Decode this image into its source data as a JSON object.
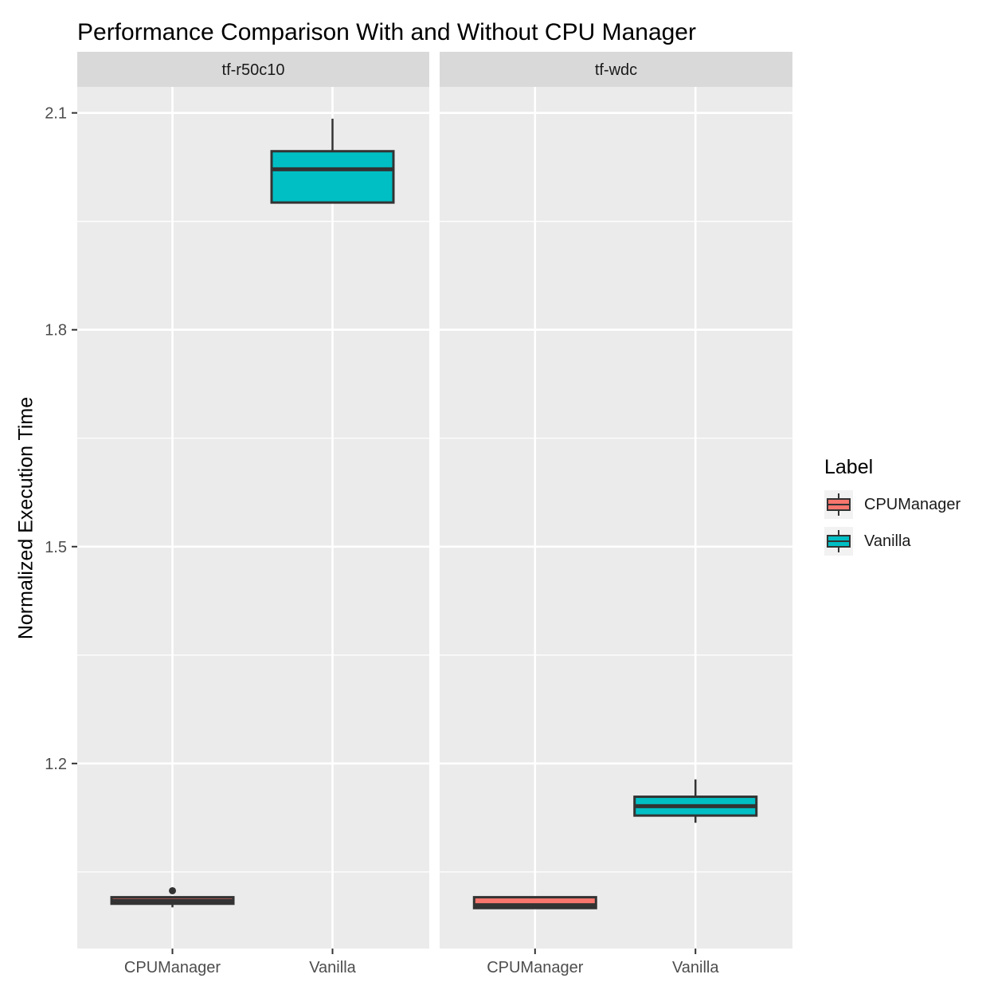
{
  "chart_data": {
    "type": "boxplot",
    "title": "Performance Comparison With and Without CPU Manager",
    "ylabel": "Normalized Execution Time",
    "xlabel": "",
    "ylim": [
      0.944,
      2.136
    ],
    "y_ticks": [
      2.1,
      1.8,
      1.5,
      1.2
    ],
    "y_minor_ticks": [
      1.95,
      1.65,
      1.35,
      1.05
    ],
    "grid": true,
    "legend": {
      "title": "Label",
      "position": "right",
      "entries": [
        {
          "label": "CPUManager",
          "color": "#F8766D"
        },
        {
          "label": "Vanilla",
          "color": "#00BFC4"
        }
      ]
    },
    "facets": [
      {
        "label": "tf-r50c10",
        "categories": [
          "CPUManager",
          "Vanilla"
        ],
        "boxes": [
          {
            "category": "CPUManager",
            "series": "CPUManager",
            "color": "#F8766D",
            "whisker_low": 1.001,
            "q1": 1.006,
            "median": 1.01,
            "q3": 1.015,
            "whisker_high": 1.015,
            "outliers": [
              1.024
            ]
          },
          {
            "category": "Vanilla",
            "series": "Vanilla",
            "color": "#00BFC4",
            "whisker_low": 1.976,
            "q1": 1.976,
            "median": 2.022,
            "q3": 2.047,
            "whisker_high": 2.092,
            "outliers": []
          }
        ]
      },
      {
        "label": "tf-wdc",
        "categories": [
          "CPUManager",
          "Vanilla"
        ],
        "boxes": [
          {
            "category": "CPUManager",
            "series": "CPUManager",
            "color": "#F8766D",
            "whisker_low": 1.0,
            "q1": 1.0,
            "median": 1.004,
            "q3": 1.015,
            "whisker_high": 1.015,
            "outliers": []
          },
          {
            "category": "Vanilla",
            "series": "Vanilla",
            "color": "#00BFC4",
            "whisker_low": 1.118,
            "q1": 1.128,
            "median": 1.141,
            "q3": 1.154,
            "whisker_high": 1.178,
            "outliers": []
          }
        ]
      }
    ],
    "colors": {
      "panel_bg": "#EBEBEB",
      "strip_bg": "#D9D9D9",
      "grid": "#FFFFFF",
      "box_stroke": "#333333",
      "axis_text": "#4D4D4D",
      "tick_mark": "#333333",
      "strip_text": "#1A1A1A",
      "legend_key_bg": "#F2F2F2",
      "cpumanager": "#F8766D",
      "vanilla": "#00BFC4"
    }
  }
}
